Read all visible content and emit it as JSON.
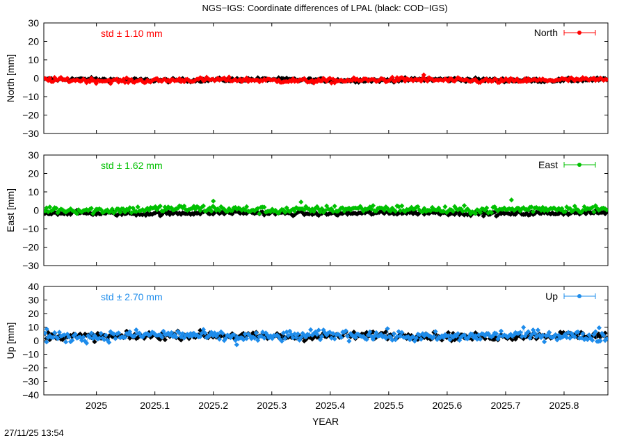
{
  "title": "NGS−IGS: Coordinate differences of LPAL (black: COD−IGS)",
  "timestamp": "27/11/25 13:54",
  "xlabel": "YEAR",
  "x_ticks": [
    {
      "value": 2025.0,
      "label": "2025"
    },
    {
      "value": 2025.1,
      "label": "2025.1"
    },
    {
      "value": 2025.2,
      "label": "2025.2"
    },
    {
      "value": 2025.3,
      "label": "2025.3"
    },
    {
      "value": 2025.4,
      "label": "2025.4"
    },
    {
      "value": 2025.5,
      "label": "2025.5"
    },
    {
      "value": 2025.6,
      "label": "2025.6"
    },
    {
      "value": 2025.7,
      "label": "2025.7"
    },
    {
      "value": 2025.8,
      "label": "2025.8"
    }
  ],
  "xlim": [
    2024.91,
    2025.875
  ],
  "chart_data": [
    {
      "type": "scatter",
      "panel": "north",
      "ylabel": "North [mm]",
      "ylim": [
        -30,
        30
      ],
      "y_ticks": [
        {
          "value": 30,
          "label": "30"
        },
        {
          "value": 20,
          "label": "20"
        },
        {
          "value": 10,
          "label": "10"
        },
        {
          "value": 0,
          "label": "0"
        },
        {
          "value": -10,
          "label": "−10"
        },
        {
          "value": -20,
          "label": "−20"
        },
        {
          "value": -30,
          "label": "−30"
        }
      ],
      "std_label": "std ± 1.10 mm",
      "legend_label": "North",
      "legend_position": "top-right",
      "series_color": "#ff0000",
      "reference_color": "#000000",
      "reference_mean": -0.9,
      "reference_amp": 0.7,
      "series_mean": -1.1,
      "series_amp": 0.9,
      "series_spike_x": [
        2025.56
      ],
      "series_spike_y": [
        1.8
      ],
      "grid": false
    },
    {
      "type": "scatter",
      "panel": "east",
      "ylabel": "East [mm]",
      "ylim": [
        -30,
        30
      ],
      "y_ticks": [
        {
          "value": 30,
          "label": "30"
        },
        {
          "value": 20,
          "label": "20"
        },
        {
          "value": 10,
          "label": "10"
        },
        {
          "value": 0,
          "label": "0"
        },
        {
          "value": -10,
          "label": "−10"
        },
        {
          "value": -20,
          "label": "−20"
        },
        {
          "value": -30,
          "label": "−30"
        }
      ],
      "std_label": "std ± 1.62 mm",
      "legend_label": "East",
      "legend_position": "top-right",
      "series_color": "#00c000",
      "reference_color": "#000000",
      "reference_mean": -1.5,
      "reference_amp": 0.8,
      "series_mean": 0.5,
      "series_amp": 1.4,
      "series_spike_x": [
        2025.2,
        2025.35,
        2025.71
      ],
      "series_spike_y": [
        5.0,
        4.5,
        5.6
      ],
      "grid": false
    },
    {
      "type": "scatter",
      "panel": "up",
      "ylabel": "Up [mm]",
      "ylim": [
        -40,
        40
      ],
      "y_ticks": [
        {
          "value": 40,
          "label": "40"
        },
        {
          "value": 30,
          "label": "30"
        },
        {
          "value": 20,
          "label": "20"
        },
        {
          "value": 10,
          "label": "10"
        },
        {
          "value": 0,
          "label": "0"
        },
        {
          "value": -10,
          "label": "−10"
        },
        {
          "value": -20,
          "label": "−20"
        },
        {
          "value": -30,
          "label": "−30"
        },
        {
          "value": -40,
          "label": "−40"
        }
      ],
      "std_label": "std ± 2.70 mm",
      "legend_label": "Up",
      "legend_position": "top-right",
      "series_color": "#1e8ceb",
      "reference_color": "#000000",
      "reference_mean": 3.5,
      "reference_amp": 2.0,
      "series_mean": 3.5,
      "series_amp": 2.7,
      "series_spike_x": [
        2025.86,
        2024.915,
        2025.24
      ],
      "series_spike_y": [
        9.5,
        8.5,
        -3.0
      ],
      "grid": false
    }
  ]
}
